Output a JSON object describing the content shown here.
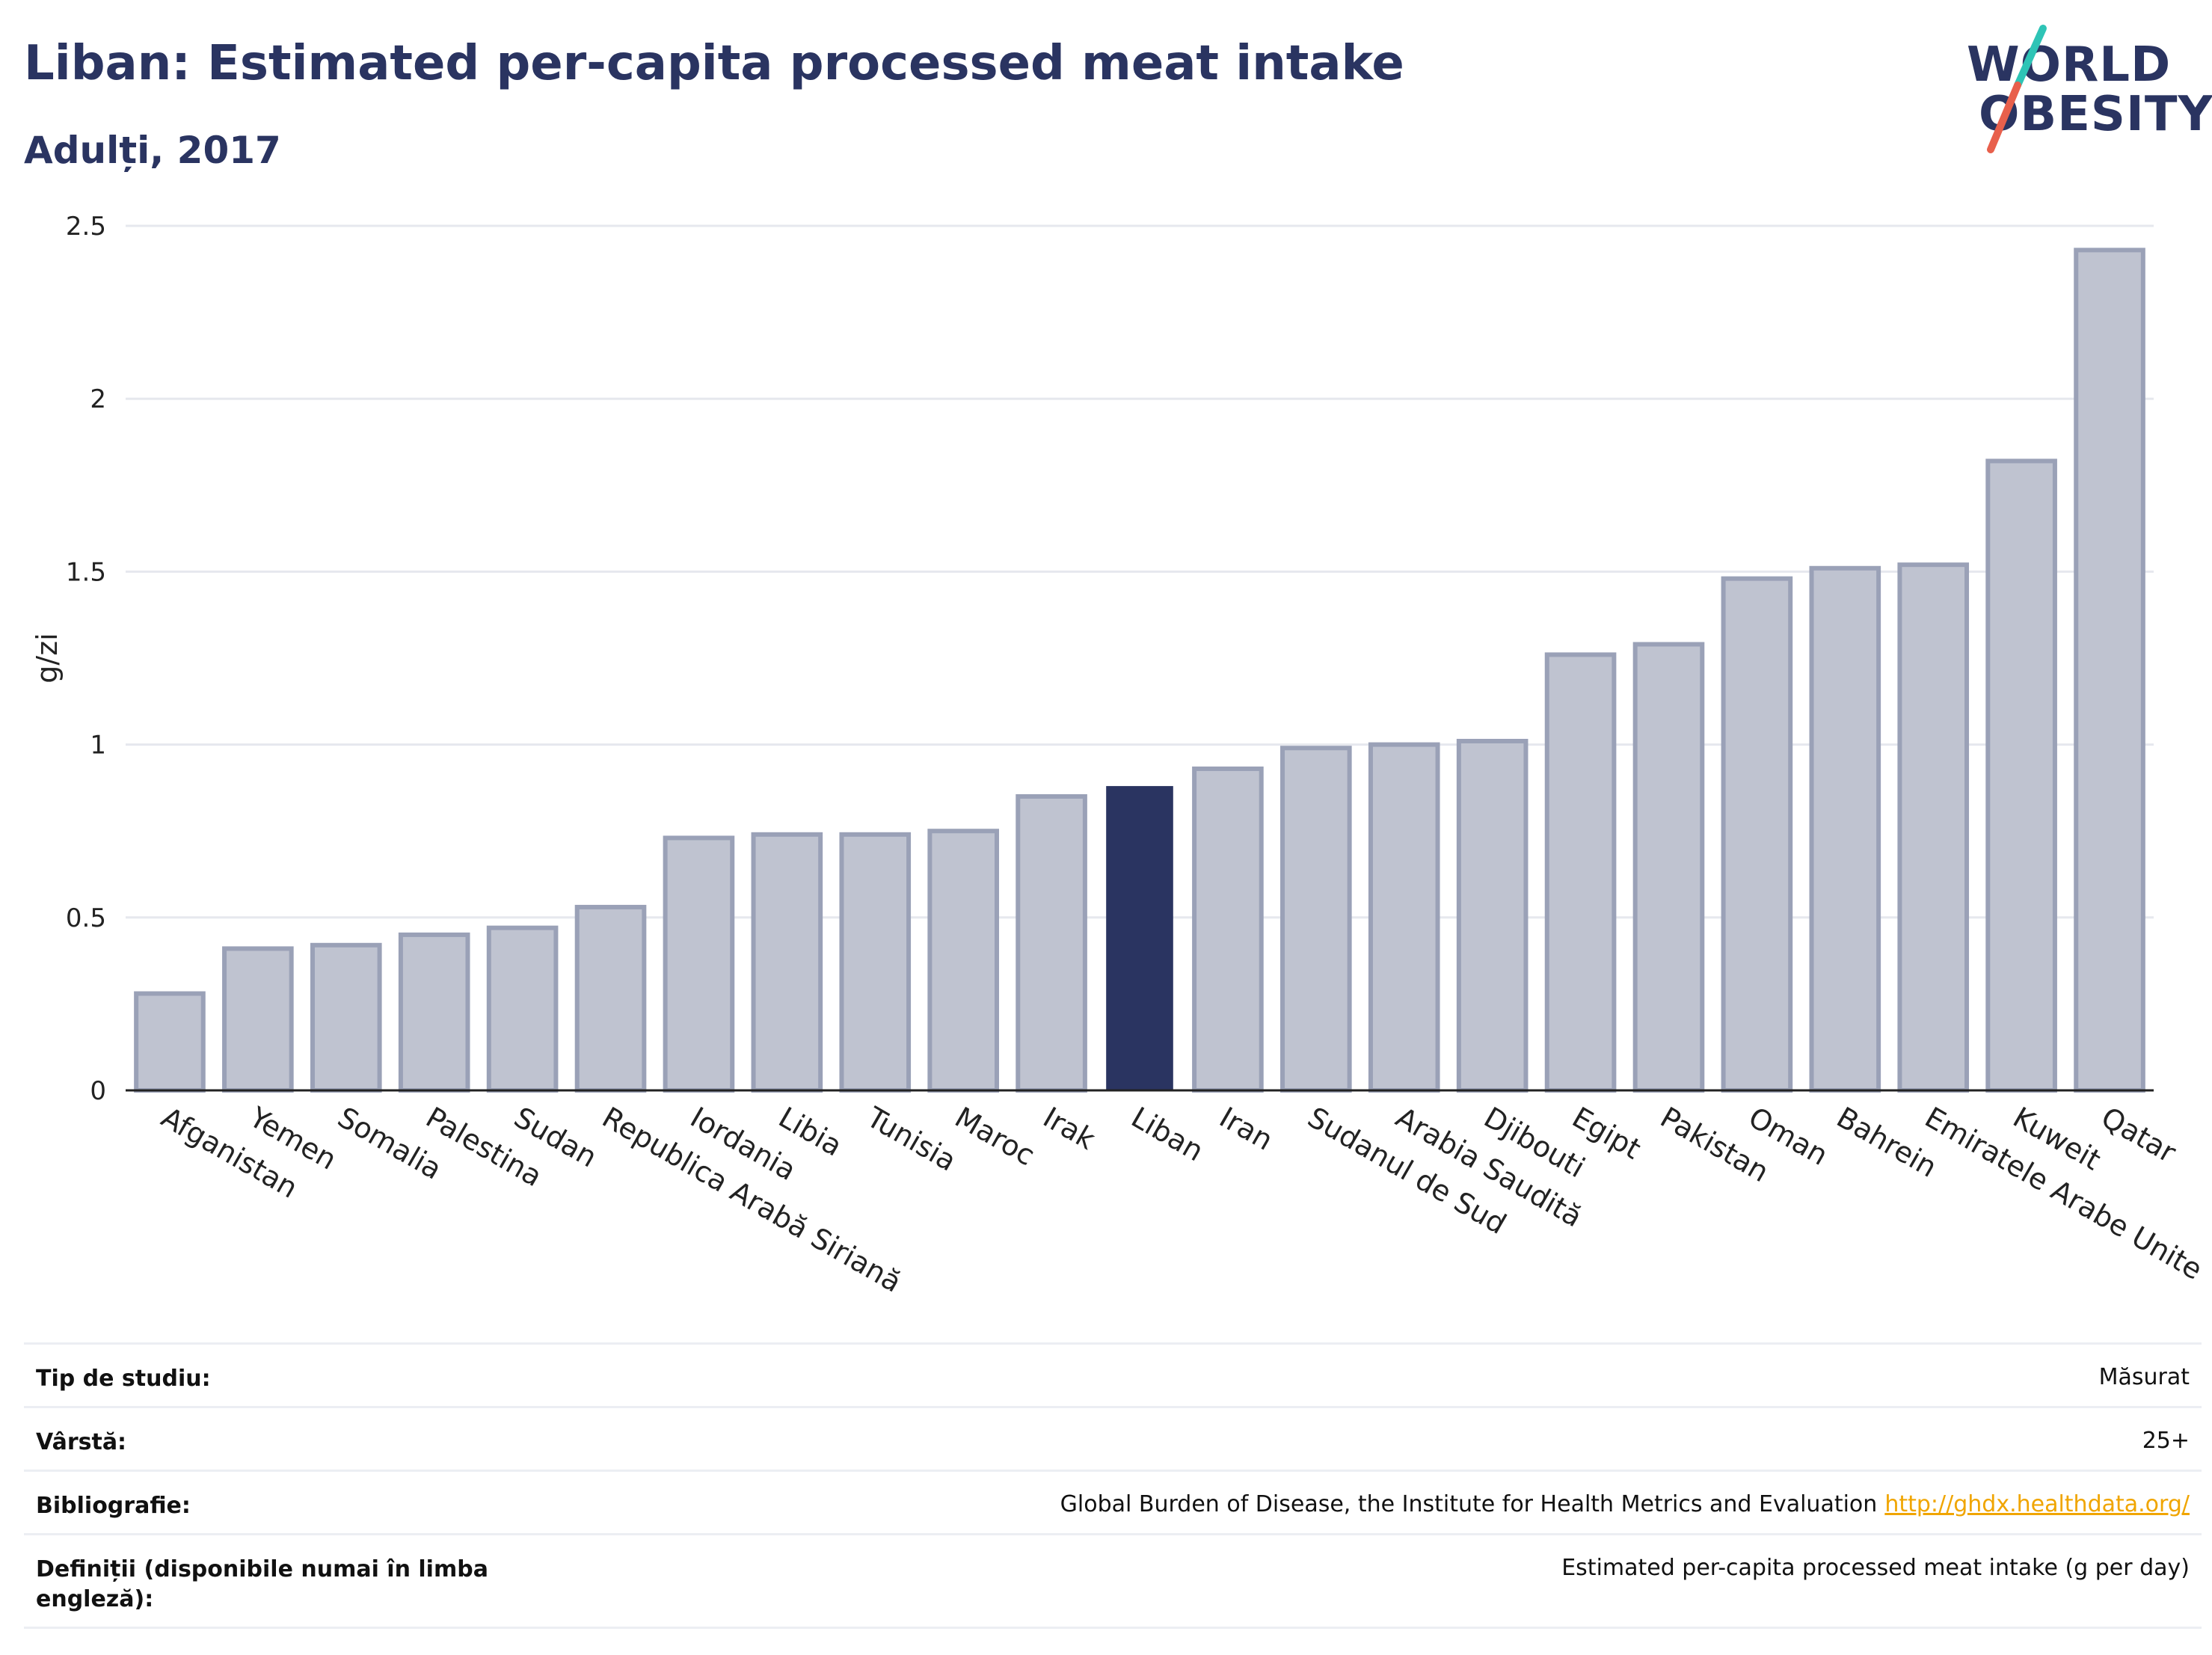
{
  "header": {
    "title": "Liban: Estimated per-capita processed meat intake",
    "subtitle": "Adulți, 2017"
  },
  "logo": {
    "line1": "WORLD",
    "line2": "OBESITY",
    "colors": {
      "text": "#2a3461",
      "slash_top": "#2ec4b6",
      "slash_bottom": "#e8604c"
    }
  },
  "colors": {
    "bar": "#bfc3d0",
    "bar_stroke": "#9aa1b7",
    "highlight": "#2a3461",
    "grid": "#e6e8ee",
    "axis_text": "#222222"
  },
  "chart_data": {
    "type": "bar",
    "ylabel": "g/zi",
    "ylim": [
      0,
      2.5
    ],
    "yticks": [
      0,
      0.5,
      1,
      1.5,
      2,
      2.5
    ],
    "ytick_labels": [
      "0",
      "0.5",
      "1",
      "1.5",
      "2",
      "2.5"
    ],
    "grid": true,
    "highlight": "Liban",
    "categories": [
      "Afganistan",
      "Yemen",
      "Somalia",
      "Palestina",
      "Sudan",
      "Republica Arabă Siriană",
      "Iordania",
      "Libia",
      "Tunisia",
      "Maroc",
      "Irak",
      "Liban",
      "Iran",
      "Sudanul de Sud",
      "Arabia Saudită",
      "Djibouti",
      "Egipt",
      "Pakistan",
      "Oman",
      "Bahrein",
      "Emiratele Arabe Unite",
      "Kuweit",
      "Qatar"
    ],
    "values": [
      0.28,
      0.41,
      0.42,
      0.45,
      0.47,
      0.53,
      0.73,
      0.74,
      0.74,
      0.75,
      0.85,
      0.88,
      0.93,
      0.99,
      1.0,
      1.01,
      1.26,
      1.29,
      1.48,
      1.51,
      1.52,
      1.82,
      2.43
    ]
  },
  "meta": {
    "rows": [
      {
        "label": "Tip de studiu:",
        "value": "Măsurat"
      },
      {
        "label": "Vârstă:",
        "value": "25+"
      },
      {
        "label": "Bibliografie:",
        "value": "Global Burden of Disease, the Institute for Health Metrics and Evaluation",
        "link": "http://ghdx.healthdata.org/"
      },
      {
        "label": "Definiții (disponibile numai în limba engleză):",
        "value": "Estimated per-capita processed meat intake (g per day)"
      }
    ]
  }
}
